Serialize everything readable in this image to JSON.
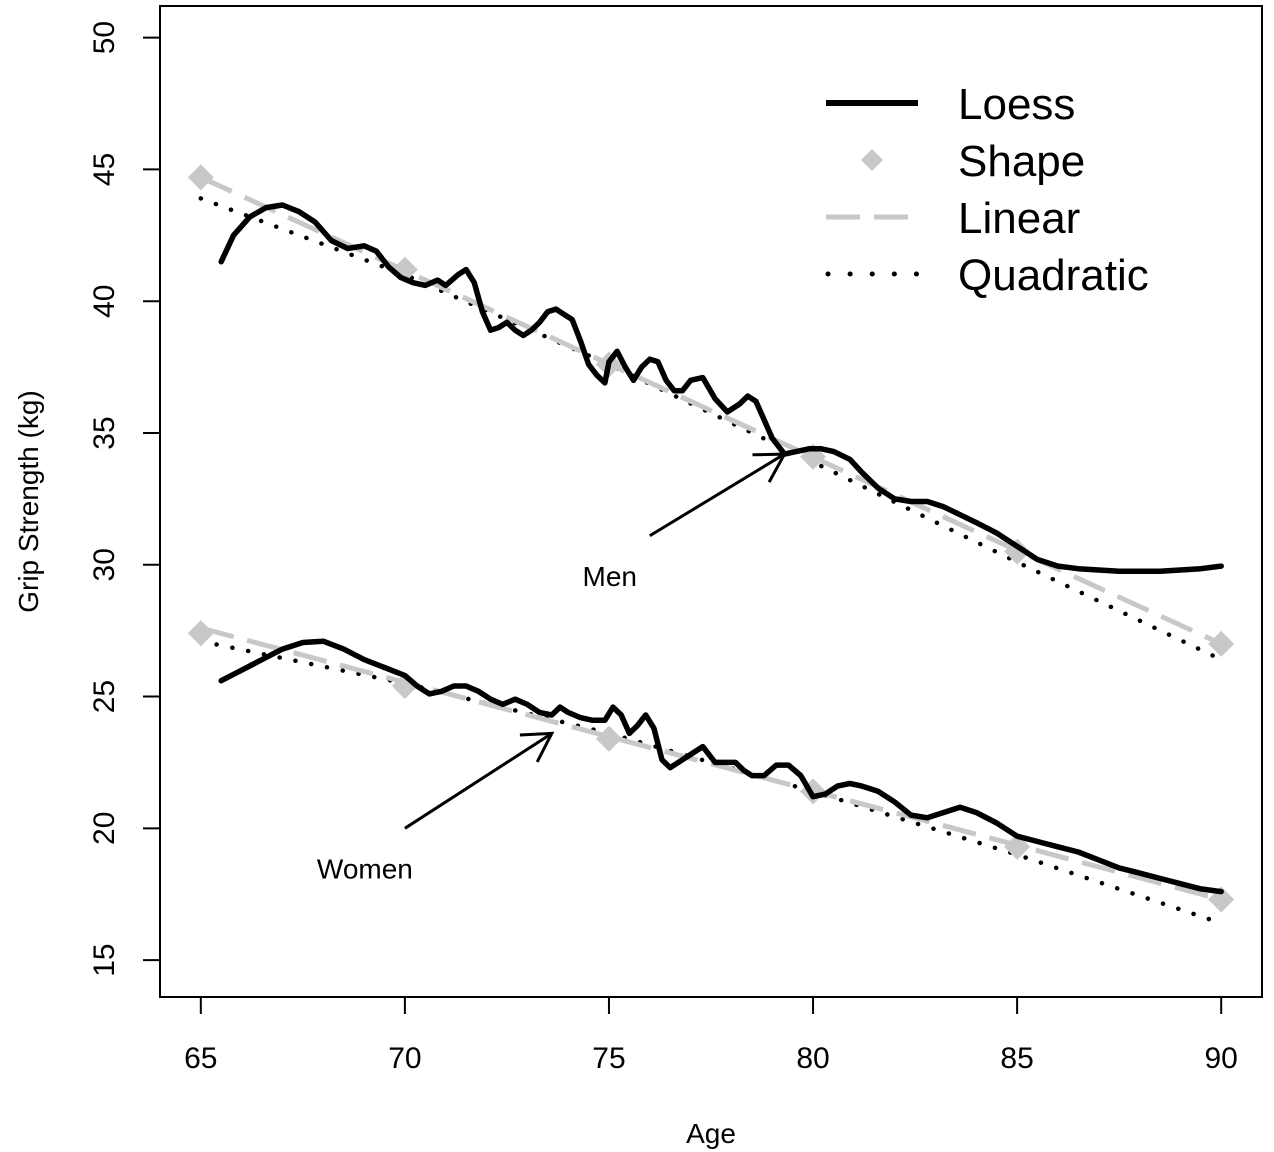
{
  "chart_data": {
    "type": "line",
    "title": "",
    "xlabel": "Age",
    "ylabel": "Grip Strength (kg)",
    "xlim": [
      64,
      91
    ],
    "ylim": [
      13.6,
      51.2
    ],
    "xticks": [
      65,
      70,
      75,
      80,
      85,
      90
    ],
    "yticks": [
      15,
      20,
      25,
      30,
      35,
      40,
      45,
      50
    ],
    "grid": false,
    "legend_position": "top-right",
    "legend": [
      {
        "label": "Loess",
        "style": "loess"
      },
      {
        "label": "Shape",
        "style": "shape"
      },
      {
        "label": "Linear",
        "style": "linear"
      },
      {
        "label": "Quadratic",
        "style": "quadratic"
      }
    ],
    "annotations": [
      {
        "text": "Men",
        "arrow_from": [
          76,
          31.1
        ],
        "arrow_to": [
          79.3,
          34.2
        ]
      },
      {
        "text": "Women",
        "arrow_from": [
          70,
          20.0
        ],
        "arrow_to": [
          73.6,
          23.6
        ]
      }
    ],
    "colors": {
      "loess": "#000000",
      "shape": "#c8c8c8",
      "linear": "#c8c8c8",
      "quadratic": "#000000"
    },
    "groups": [
      {
        "group": "Men",
        "loess": {
          "x": [
            65.5,
            65.8,
            66.2,
            66.6,
            67.0,
            67.4,
            67.8,
            68.2,
            68.6,
            69.0,
            69.3,
            69.6,
            69.9,
            70.2,
            70.5,
            70.8,
            71.0,
            71.3,
            71.5,
            71.7,
            71.9,
            72.1,
            72.3,
            72.5,
            72.7,
            72.9,
            73.1,
            73.3,
            73.5,
            73.7,
            73.9,
            74.1,
            74.3,
            74.5,
            74.7,
            74.9,
            75.0,
            75.2,
            75.4,
            75.6,
            75.8,
            76.0,
            76.2,
            76.4,
            76.6,
            76.8,
            77.0,
            77.3,
            77.6,
            77.9,
            78.2,
            78.4,
            78.6,
            78.8,
            79.0,
            79.3,
            79.6,
            79.9,
            80.2,
            80.5,
            80.9,
            81.2,
            81.6,
            82.0,
            82.4,
            82.8,
            83.2,
            83.6,
            84.0,
            84.5,
            85.0,
            85.5,
            86.0,
            86.5,
            87.0,
            87.5,
            88.0,
            88.5,
            89.0,
            89.5,
            90.0
          ],
          "y": [
            41.5,
            42.5,
            43.2,
            43.55,
            43.65,
            43.4,
            43.0,
            42.3,
            42.0,
            42.1,
            41.9,
            41.3,
            40.9,
            40.7,
            40.6,
            40.8,
            40.6,
            41.0,
            41.2,
            40.7,
            39.6,
            38.9,
            39.0,
            39.2,
            38.9,
            38.7,
            38.9,
            39.2,
            39.6,
            39.7,
            39.5,
            39.3,
            38.5,
            37.6,
            37.2,
            36.9,
            37.7,
            38.1,
            37.5,
            37.0,
            37.5,
            37.8,
            37.7,
            37.0,
            36.6,
            36.6,
            37.0,
            37.1,
            36.3,
            35.8,
            36.1,
            36.4,
            36.2,
            35.5,
            34.8,
            34.2,
            34.3,
            34.4,
            34.4,
            34.3,
            34.0,
            33.5,
            32.9,
            32.5,
            32.4,
            32.4,
            32.2,
            31.9,
            31.6,
            31.2,
            30.7,
            30.2,
            29.95,
            29.85,
            29.8,
            29.75,
            29.75,
            29.75,
            29.8,
            29.85,
            29.95
          ]
        },
        "shape": {
          "x": [
            65,
            70,
            75,
            80,
            85,
            90
          ],
          "y": [
            44.7,
            41.2,
            37.6,
            34.1,
            30.5,
            27.0
          ]
        },
        "linear": {
          "x": [
            65,
            90
          ],
          "y": [
            44.7,
            27.0
          ]
        },
        "quadratic": {
          "x": [
            65,
            70,
            75,
            80,
            85,
            90
          ],
          "y": [
            43.9,
            41.0,
            37.6,
            33.9,
            30.1,
            26.4
          ]
        }
      },
      {
        "group": "Women",
        "loess": {
          "x": [
            65.5,
            66.0,
            66.5,
            67.0,
            67.5,
            68.0,
            68.5,
            69.0,
            69.5,
            70.0,
            70.3,
            70.6,
            70.9,
            71.2,
            71.5,
            71.8,
            72.1,
            72.4,
            72.7,
            73.0,
            73.3,
            73.6,
            73.8,
            74.0,
            74.3,
            74.6,
            74.9,
            75.1,
            75.3,
            75.5,
            75.7,
            75.9,
            76.1,
            76.3,
            76.5,
            76.7,
            77.0,
            77.3,
            77.6,
            77.9,
            78.1,
            78.3,
            78.5,
            78.8,
            79.1,
            79.4,
            79.7,
            80.0,
            80.3,
            80.6,
            80.9,
            81.2,
            81.6,
            82.0,
            82.4,
            82.8,
            83.2,
            83.6,
            84.0,
            84.5,
            85.0,
            85.5,
            86.0,
            86.5,
            87.0,
            87.5,
            88.0,
            88.5,
            89.0,
            89.5,
            90.0
          ],
          "y": [
            25.6,
            26.0,
            26.4,
            26.8,
            27.05,
            27.1,
            26.8,
            26.4,
            26.1,
            25.8,
            25.4,
            25.1,
            25.2,
            25.4,
            25.4,
            25.2,
            24.9,
            24.7,
            24.9,
            24.7,
            24.4,
            24.3,
            24.6,
            24.4,
            24.2,
            24.1,
            24.1,
            24.6,
            24.3,
            23.6,
            23.9,
            24.3,
            23.8,
            22.6,
            22.3,
            22.5,
            22.8,
            23.1,
            22.5,
            22.5,
            22.5,
            22.2,
            22.0,
            22.0,
            22.4,
            22.4,
            22.0,
            21.2,
            21.3,
            21.6,
            21.7,
            21.6,
            21.4,
            21.0,
            20.5,
            20.4,
            20.6,
            20.8,
            20.6,
            20.2,
            19.7,
            19.5,
            19.3,
            19.1,
            18.8,
            18.5,
            18.3,
            18.1,
            17.9,
            17.7,
            17.6
          ]
        },
        "shape": {
          "x": [
            65,
            70,
            75,
            80,
            85,
            90
          ],
          "y": [
            27.4,
            25.4,
            23.4,
            21.4,
            19.3,
            17.3
          ]
        },
        "linear": {
          "x": [
            65,
            90
          ],
          "y": [
            27.6,
            17.3
          ]
        },
        "quadratic": {
          "x": [
            65,
            70,
            75,
            80,
            85,
            90
          ],
          "y": [
            27.1,
            25.5,
            23.6,
            21.4,
            19.0,
            16.4
          ]
        }
      }
    ]
  }
}
